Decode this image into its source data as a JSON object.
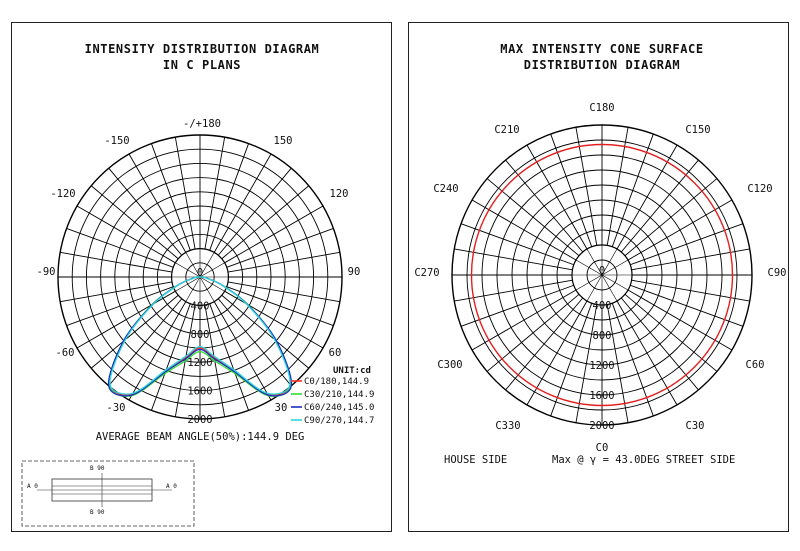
{
  "left": {
    "title_line1": "INTENSITY DISTRIBUTION DIAGRAM",
    "title_line2": "IN C PLANS",
    "angle_labels": {
      "top": "-/+180",
      "tr1": "150",
      "tr2": "120",
      "right": "90",
      "br1": "60",
      "br2": "30",
      "tl1": "-150",
      "tl2": "-120",
      "left": "-90",
      "bl1": "-60",
      "bl2": "-30",
      "bottom": "0"
    },
    "unit_label": "UNIT:cd",
    "footer": "AVERAGE BEAM ANGLE(50%):144.9 DEG",
    "key": {
      "top": "B 90",
      "bottom": "B 90",
      "left": "A 0",
      "right": "A 0"
    }
  },
  "right": {
    "title_line1": "MAX INTENSITY CONE SURFACE",
    "title_line2": "DISTRIBUTION DIAGRAM",
    "angle_labels": {
      "top": "C180",
      "tr1": "C150",
      "tr2": "C120",
      "right": "C90",
      "br1": "C60",
      "br2": "C30",
      "bottom": "C0",
      "bl2": "C330",
      "bl1": "C300",
      "left": "C270",
      "tl2": "C240",
      "tl1": "C210"
    },
    "footer_left": "HOUSE SIDE",
    "footer_center": "Max @ γ = 43.0DEG STREET SIDE",
    "max_angle_deg": 43.0
  },
  "chart_data": [
    {
      "type": "polar-line",
      "title": "INTENSITY DISTRIBUTION DIAGRAM IN C PLANS",
      "unit": "cd",
      "radial_ticks": [
        0,
        400,
        800,
        1200,
        1600,
        2000
      ],
      "rmax": 2000,
      "angle_step_deg": 10,
      "series": [
        {
          "name": "C0/180,144.9",
          "color": "#ff2a2a",
          "angles": [
            0,
            10,
            20,
            30,
            40,
            50,
            60,
            70,
            80,
            90
          ],
          "values": [
            1000,
            1150,
            1400,
            1900,
            1980,
            1380,
            760,
            320,
            90,
            40
          ]
        },
        {
          "name": "C30/210,144.9",
          "color": "#33dd33",
          "angles": [
            0,
            10,
            20,
            30,
            40,
            50,
            60,
            70,
            80,
            90
          ],
          "values": [
            1050,
            1200,
            1450,
            1930,
            1990,
            1400,
            780,
            330,
            95,
            40
          ]
        },
        {
          "name": "C60/240,145.0",
          "color": "#1a2fbf",
          "angles": [
            0,
            10,
            20,
            30,
            40,
            50,
            60,
            70,
            80,
            90
          ],
          "values": [
            1020,
            1170,
            1420,
            1920,
            2000,
            1410,
            770,
            325,
            92,
            40
          ]
        },
        {
          "name": "C90/270,144.7",
          "color": "#28d8e0",
          "angles": [
            0,
            10,
            20,
            30,
            40,
            50,
            60,
            70,
            80,
            90
          ],
          "values": [
            980,
            1130,
            1390,
            1890,
            1970,
            1370,
            750,
            315,
            88,
            40
          ]
        }
      ]
    },
    {
      "type": "polar-line",
      "title": "MAX INTENSITY CONE SURFACE DISTRIBUTION DIAGRAM",
      "radial_ticks": [
        0,
        400,
        800,
        1200,
        1600,
        2000
      ],
      "rmax": 2000,
      "series": [
        {
          "name": "Max @ γ = 43.0DEG",
          "color": "#e32020",
          "c_angles": [
            0,
            30,
            60,
            90,
            120,
            150,
            180,
            210,
            240,
            270,
            300,
            330
          ],
          "values": [
            1740,
            1740,
            1740,
            1740,
            1740,
            1740,
            1740,
            1740,
            1740,
            1740,
            1740,
            1740
          ]
        }
      ]
    }
  ]
}
